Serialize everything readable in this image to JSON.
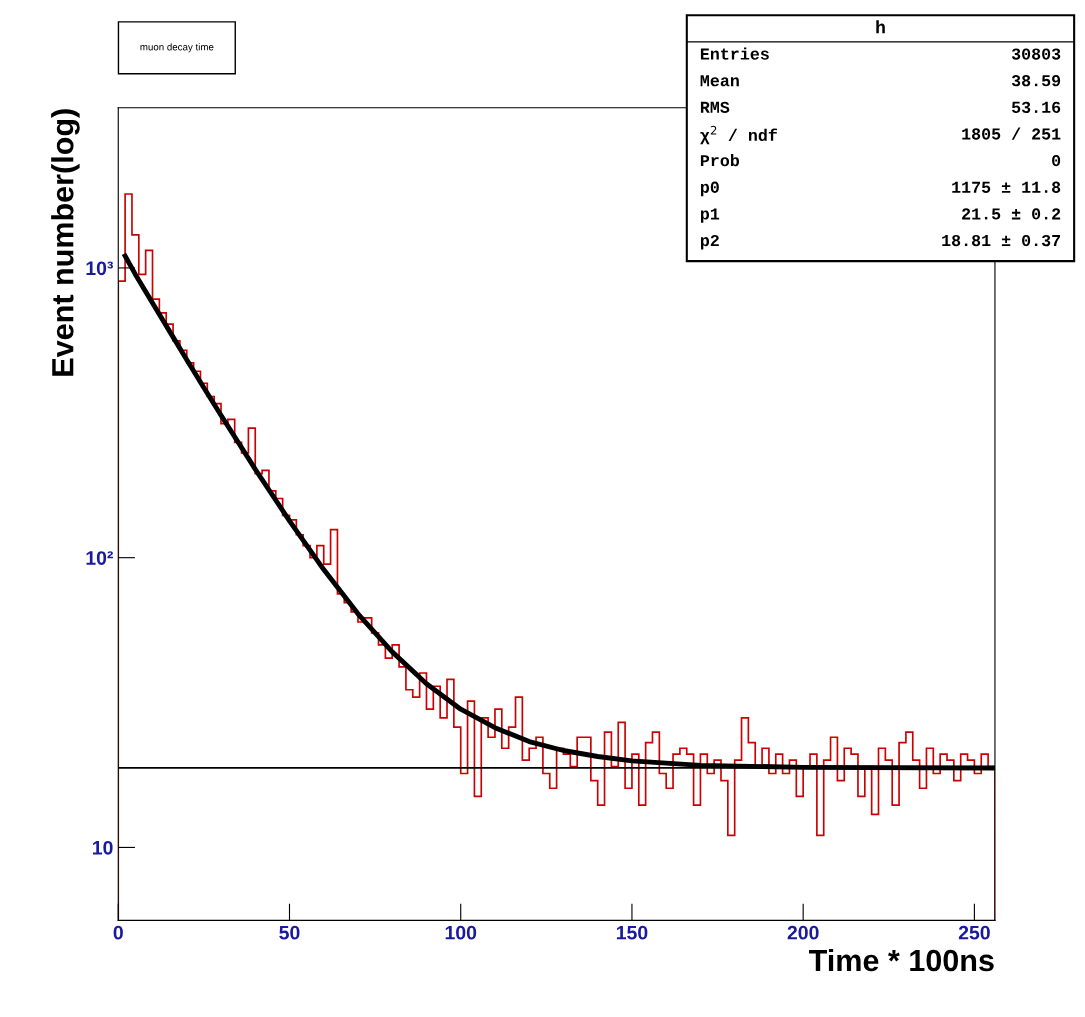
{
  "chart_data": {
    "type": "histogram",
    "title": "muon decay time",
    "xlabel": "Time * 100ns",
    "ylabel": "Event number(log)",
    "log": "y",
    "xlim": [
      0,
      256
    ],
    "xticks": [
      0,
      50,
      100,
      150,
      200,
      250
    ],
    "ylim": [
      5.6,
      3570
    ],
    "yticks": [
      10,
      {
        "value": 100,
        "label": "10²"
      },
      {
        "value": 1000,
        "label": "10³"
      }
    ],
    "grid": false,
    "ref_lines": [
      {
        "axis": "y",
        "value": 18.81,
        "color": "#000000"
      }
    ],
    "annotations": [
      "h",
      "Entries\t30803",
      "Mean\t38.59",
      "RMS\t53.16",
      "χ$^{2}$ / ndf\t1805 / 251",
      "Prob\t0",
      "p0\t1175 ± 11.8",
      "p1\t21.5 ± 0.2",
      "p2\t18.81 ± 0.37"
    ],
    "series": [
      {
        "type": "histogram",
        "color": "#cc0000",
        "bins": [
          0,
          2,
          4,
          6,
          8,
          10,
          12,
          14,
          16,
          18,
          20,
          22,
          24,
          26,
          28,
          30,
          32,
          34,
          36,
          38,
          40,
          42,
          44,
          46,
          48,
          50,
          52,
          54,
          56,
          58,
          60,
          62,
          64,
          66,
          68,
          70,
          72,
          74,
          76,
          78,
          80,
          82,
          84,
          86,
          88,
          90,
          92,
          94,
          96,
          98,
          100,
          102,
          104,
          106,
          108,
          110,
          112,
          114,
          116,
          118,
          120,
          122,
          124,
          126,
          128,
          130,
          132,
          134,
          136,
          138,
          140,
          142,
          144,
          146,
          148,
          150,
          152,
          154,
          156,
          158,
          160,
          162,
          164,
          166,
          168,
          170,
          172,
          174,
          176,
          178,
          180,
          182,
          184,
          186,
          188,
          190,
          192,
          194,
          196,
          198,
          200,
          202,
          204,
          206,
          208,
          210,
          212,
          214,
          216,
          218,
          220,
          222,
          224,
          226,
          228,
          230,
          232,
          234,
          236,
          238,
          240,
          242,
          244,
          246,
          248,
          250,
          252,
          254,
          256
        ],
        "values": [
          900,
          1800,
          1300,
          950,
          1150,
          780,
          700,
          640,
          560,
          520,
          470,
          440,
          400,
          360,
          340,
          290,
          300,
          250,
          230,
          280,
          195,
          200,
          170,
          160,
          140,
          135,
          120,
          110,
          100,
          110,
          95,
          125,
          75,
          70,
          65,
          60,
          62,
          55,
          50,
          45,
          50,
          42,
          35,
          33,
          40,
          30,
          36,
          28,
          38,
          26,
          18,
          32,
          15,
          28,
          24,
          30,
          22,
          26,
          33,
          20,
          22,
          24,
          18,
          16,
          22,
          21,
          19,
          24,
          24,
          17,
          14,
          25,
          19,
          27,
          16,
          21,
          14,
          23,
          25,
          18,
          16,
          21,
          22,
          21,
          14,
          21,
          18,
          20,
          17,
          11,
          20,
          28,
          23,
          19,
          22,
          18,
          21,
          18,
          20,
          15,
          19,
          21,
          11,
          20,
          24,
          17,
          22,
          21,
          15,
          19,
          13,
          22,
          20,
          14,
          23,
          25,
          20,
          16,
          22,
          18,
          21,
          20,
          17,
          21,
          20,
          18,
          21,
          19
        ]
      },
      {
        "type": "line",
        "color": "#000000",
        "x": [
          2,
          5,
          10,
          15,
          20,
          25,
          30,
          40,
          50,
          60,
          70,
          80,
          90,
          100,
          110,
          120,
          130,
          140,
          150,
          170,
          200,
          256
        ],
        "values": [
          1100,
          950,
          757,
          604,
          482,
          386,
          310,
          202,
          134,
          91,
          64,
          47.3,
          36.7,
          30.0,
          25.9,
          23.2,
          21.6,
          20.6,
          19.9,
          19.2,
          18.9,
          18.8
        ]
      }
    ]
  }
}
